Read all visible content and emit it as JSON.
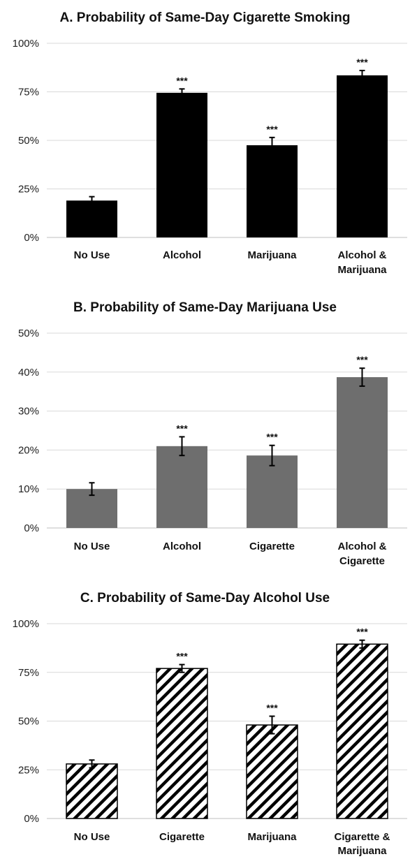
{
  "chart_data": [
    {
      "type": "bar",
      "title": "A. Probability of Same-Day Cigarette Smoking",
      "categories": [
        "No Use",
        "Alcohol",
        "Marijuana",
        "Alcohol & Marijuana"
      ],
      "category_lines": [
        [
          "No Use"
        ],
        [
          "Alcohol"
        ],
        [
          "Marijuana"
        ],
        [
          "Alcohol &",
          "Marijuana"
        ]
      ],
      "values": [
        19,
        74.5,
        47.5,
        83.5
      ],
      "error": [
        2,
        2,
        4,
        2.5
      ],
      "significance": [
        "",
        "***",
        "***",
        "***"
      ],
      "ylim": [
        0,
        100
      ],
      "yticks": [
        0,
        25,
        50,
        75,
        100
      ],
      "ytick_labels": [
        "0%",
        "25%",
        "50%",
        "75%",
        "100%"
      ],
      "bar_style": "solid-black",
      "fill_color": "#000000",
      "grid": true
    },
    {
      "type": "bar",
      "title": "B. Probability of Same-Day Marijuana Use",
      "categories": [
        "No Use",
        "Alcohol",
        "Cigarette",
        "Alcohol & Cigarette"
      ],
      "category_lines": [
        [
          "No Use"
        ],
        [
          "Alcohol"
        ],
        [
          "Cigarette"
        ],
        [
          "Alcohol &",
          "Cigarette"
        ]
      ],
      "values": [
        10,
        21,
        18.6,
        38.7
      ],
      "error": [
        1.6,
        2.4,
        2.6,
        2.3
      ],
      "significance": [
        "",
        "***",
        "***",
        "***"
      ],
      "ylim": [
        0,
        50
      ],
      "yticks": [
        0,
        10,
        20,
        30,
        40,
        50
      ],
      "ytick_labels": [
        "0%",
        "10%",
        "20%",
        "30%",
        "40%",
        "50%"
      ],
      "bar_style": "solid-gray",
      "fill_color": "#6e6e6e",
      "grid": true
    },
    {
      "type": "bar",
      "title": "C. Probability of Same-Day Alcohol Use",
      "categories": [
        "No Use",
        "Cigarette",
        "Marijuana",
        "Cigarette & Marijuana"
      ],
      "category_lines": [
        [
          "No Use"
        ],
        [
          "Cigarette"
        ],
        [
          "Marijuana"
        ],
        [
          "Cigarette &",
          "Marijuana"
        ]
      ],
      "values": [
        28,
        77,
        48,
        89.5
      ],
      "error": [
        2,
        2,
        4.5,
        2
      ],
      "significance": [
        "",
        "***",
        "***",
        "***"
      ],
      "ylim": [
        0,
        100
      ],
      "yticks": [
        0,
        25,
        50,
        75,
        100
      ],
      "ytick_labels": [
        "0%",
        "25%",
        "50%",
        "75%",
        "100%"
      ],
      "bar_style": "hatched",
      "fill_color": "#000000",
      "grid": true
    }
  ]
}
